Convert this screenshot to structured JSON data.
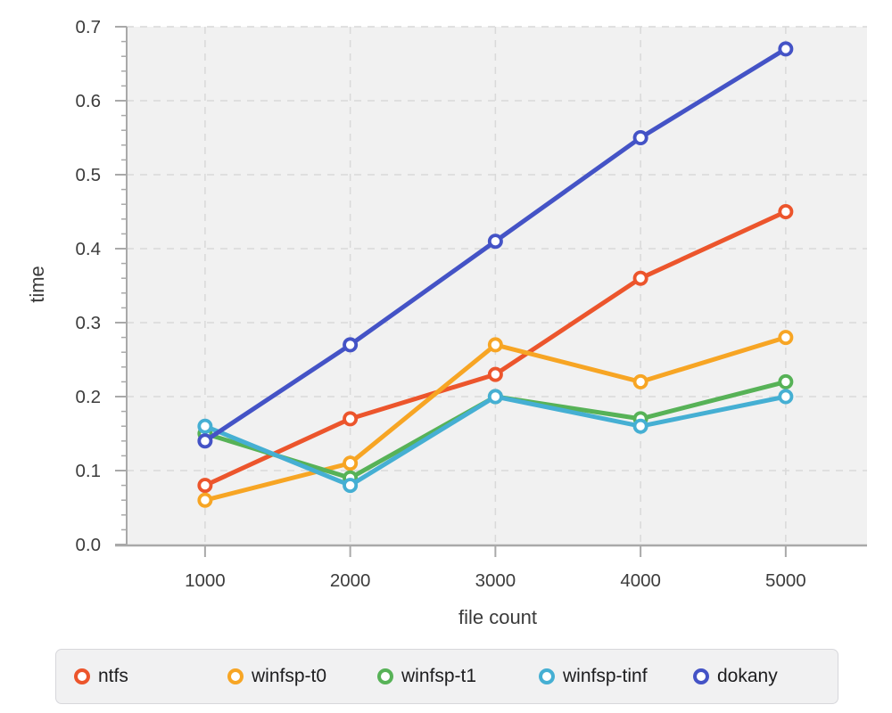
{
  "chart_data": {
    "type": "line",
    "title": "",
    "xlabel": "file count",
    "ylabel": "time",
    "x": [
      1000,
      2000,
      3000,
      4000,
      5000
    ],
    "xtick_labels": [
      "1000",
      "2000",
      "3000",
      "4000",
      "5000"
    ],
    "ytick_labels": [
      "0.0",
      "0.1",
      "0.2",
      "0.3",
      "0.4",
      "0.5",
      "0.6",
      "0.7"
    ],
    "xlim": [
      460,
      5560
    ],
    "ylim": [
      0.0,
      0.7
    ],
    "ytick_step": 0.1,
    "y_minor_tick_step": 0.02,
    "grid": true,
    "grid_style": "dashed",
    "marker_style": "open-circle",
    "legend_position": "bottom",
    "series": [
      {
        "name": "ntfs",
        "color": "#ec552c",
        "values": [
          0.08,
          0.17,
          0.23,
          0.36,
          0.45
        ]
      },
      {
        "name": "winfsp-t0",
        "color": "#f7a524",
        "values": [
          0.06,
          0.11,
          0.27,
          0.22,
          0.28
        ]
      },
      {
        "name": "winfsp-t1",
        "color": "#57b257",
        "values": [
          0.15,
          0.09,
          0.2,
          0.17,
          0.22
        ]
      },
      {
        "name": "winfsp-tinf",
        "color": "#45afd3",
        "values": [
          0.16,
          0.08,
          0.2,
          0.16,
          0.2
        ]
      },
      {
        "name": "dokany",
        "color": "#4453c6",
        "values": [
          0.14,
          0.27,
          0.41,
          0.55,
          0.67
        ]
      }
    ],
    "colors": {
      "plot_background": "#f1f1f1",
      "gridline": "#d9d9d9",
      "axis_spine": "#a9a9a9",
      "tick_label": "#3c3c3c",
      "axis_title": "#3a3a3a",
      "legend_text": "#1d1d1f",
      "marker_fill": "#ffffff"
    }
  }
}
